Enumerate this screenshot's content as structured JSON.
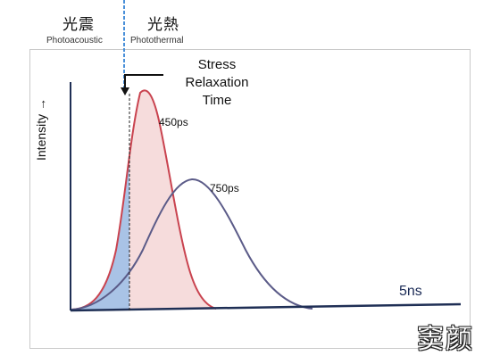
{
  "header": {
    "left_cn": "光震",
    "left_en": "Photoacoustic",
    "right_cn": "光熱",
    "right_en": "Photothermal"
  },
  "axis": {
    "y_label": "Intensity →"
  },
  "annotations": {
    "stress_line1": "Stress",
    "stress_line2": "Relaxation",
    "stress_line3": "Time",
    "peak_450": "450ps",
    "peak_750": "750ps",
    "time_end": "5ns"
  },
  "watermark": {
    "text": "窦颜"
  },
  "colors": {
    "red_curve": "#c9434f",
    "red_fill": "#f6dcdc",
    "blue_fill": "#a9c3e6",
    "purple_curve": "#5b5b88",
    "axis": "#1f2f55",
    "dashed_line": "#4a90d9"
  }
}
